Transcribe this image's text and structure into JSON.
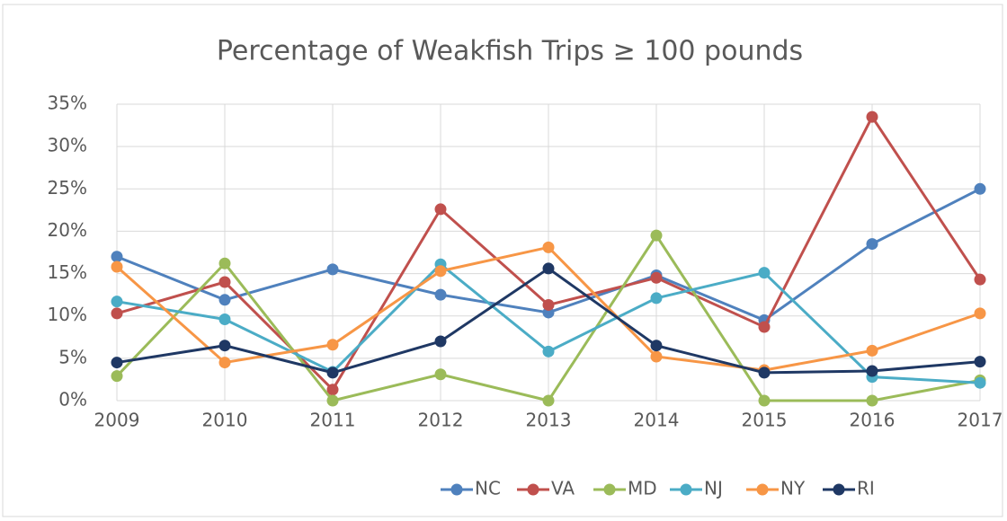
{
  "chart_data": {
    "type": "line",
    "title": "Percentage of Weakfish Trips ≥ 100 pounds",
    "categories": [
      "2009",
      "2010",
      "2011",
      "2012",
      "2013",
      "2014",
      "2015",
      "2016",
      "2017"
    ],
    "series": [
      {
        "name": "NC",
        "color": "#4f81bd",
        "values": [
          17.0,
          11.9,
          15.5,
          12.5,
          10.4,
          14.8,
          9.5,
          18.5,
          25.0
        ]
      },
      {
        "name": "VA",
        "color": "#c0504d",
        "values": [
          10.3,
          14.0,
          1.3,
          22.6,
          11.3,
          14.5,
          8.7,
          33.5,
          14.3
        ]
      },
      {
        "name": "MD",
        "color": "#9bbb59",
        "values": [
          2.9,
          16.2,
          0,
          3.1,
          0,
          19.5,
          0,
          0,
          2.4
        ]
      },
      {
        "name": "NJ",
        "color": "#4bacc6",
        "values": [
          11.7,
          9.6,
          3.4,
          16.1,
          5.8,
          12.1,
          15.1,
          2.8,
          2.1
        ]
      },
      {
        "name": "NY",
        "color": "#f79646",
        "values": [
          15.8,
          4.5,
          6.6,
          15.3,
          18.1,
          5.2,
          3.6,
          5.9,
          10.3
        ]
      },
      {
        "name": "RI",
        "color": "#1f3864",
        "values": [
          4.5,
          6.5,
          3.3,
          7.0,
          15.6,
          6.5,
          3.3,
          3.5,
          4.6
        ]
      }
    ],
    "ylim": [
      0,
      35
    ],
    "yticks": [
      {
        "value": 0,
        "label": "0%"
      },
      {
        "value": 5,
        "label": "5%"
      },
      {
        "value": 10,
        "label": "10%"
      },
      {
        "value": 15,
        "label": "15%"
      },
      {
        "value": 20,
        "label": "20%"
      },
      {
        "value": 25,
        "label": "25%"
      },
      {
        "value": 30,
        "label": "30%"
      },
      {
        "value": 35,
        "label": "35%"
      }
    ],
    "grid": true,
    "legend": "bottom"
  }
}
